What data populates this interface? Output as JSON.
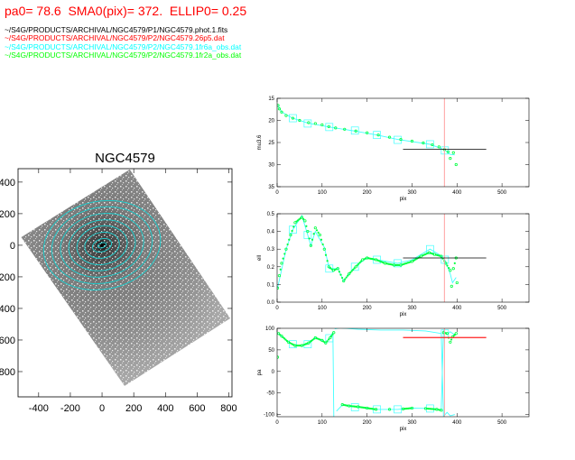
{
  "header": {
    "params": "pa0= 78.6  SMA0(pix)= 372.  ELLIP0= 0.25",
    "files": [
      {
        "text": "~/S4G/PRODUCTS/ARCHIVAL/NGC4579/P1/NGC4579.phot.1.fits",
        "color": "#000000"
      },
      {
        "text": "~/S4G/PRODUCTS/ARCHIVAL/NGC4579/P2/NGC4579.26p5.dat",
        "color": "#ff0000"
      },
      {
        "text": "~/S4G/PRODUCTS/ARCHIVAL/NGC4579/P2/NGC4579.1fr6a_obs.dat",
        "color": "#00ffff"
      },
      {
        "text": "~/S4G/PRODUCTS/ARCHIVAL/NGC4579/P2/NGC4579.1fr2a_obs.dat",
        "color": "#00ff00"
      }
    ]
  },
  "chart_data": [
    {
      "type": "image",
      "title": "NGC4579",
      "xlim": [
        -530,
        820
      ],
      "ylim": [
        -960,
        485
      ],
      "xticks": [
        -400,
        -200,
        0,
        200,
        400,
        600,
        800
      ],
      "yticks": [
        400,
        200,
        0,
        -200,
        -400,
        -600,
        -800
      ],
      "ytick_labels": [
        "400",
        "200",
        "0",
        "-200",
        "-400",
        "-600",
        "-800"
      ],
      "xtick_labels": [
        "-400",
        "-200",
        "0",
        "200",
        "400",
        "600",
        "800"
      ],
      "isophotes": {
        "color": "#20c8c8",
        "pa": 78.6,
        "sma": [
          372,
          320,
          265,
          212,
          160,
          110,
          62,
          28
        ],
        "ellip": [
          0.25,
          0.25,
          0.25,
          0.25,
          0.24,
          0.26,
          0.35,
          0.45
        ]
      }
    },
    {
      "type": "scatter",
      "ylabel": "mu3.6",
      "xlabel": "pix",
      "xlim": [
        0,
        560
      ],
      "ylim": [
        35,
        15
      ],
      "xticks": [
        0,
        100,
        200,
        300,
        400,
        500
      ],
      "xtick_labels": [
        "0",
        "100",
        "200",
        "300",
        "400",
        "500"
      ],
      "yticks": [
        15,
        20,
        25,
        30,
        35
      ],
      "ytick_labels": [
        "15",
        "20",
        "25",
        "30",
        "35"
      ],
      "sma0": 372,
      "ref_value": 26.5,
      "ref_range": [
        280,
        465
      ],
      "green": [
        [
          2,
          16.6
        ],
        [
          5,
          17.4
        ],
        [
          10,
          18.1
        ],
        [
          20,
          18.9
        ],
        [
          35,
          19.5
        ],
        [
          50,
          20
        ],
        [
          70,
          20.5
        ],
        [
          85,
          20.7
        ],
        [
          100,
          21
        ],
        [
          115,
          21.4
        ],
        [
          130,
          21.7
        ],
        [
          150,
          22
        ],
        [
          175,
          22.4
        ],
        [
          200,
          22.8
        ],
        [
          225,
          23.3
        ],
        [
          250,
          23.8
        ],
        [
          275,
          24.3
        ],
        [
          300,
          24.7
        ],
        [
          325,
          25.1
        ],
        [
          345,
          25.5
        ],
        [
          360,
          26
        ],
        [
          372,
          26.6
        ],
        [
          380,
          27.1
        ],
        [
          385,
          28.6
        ],
        [
          392,
          27.3
        ],
        [
          398,
          30
        ]
      ],
      "cyan_line": [
        [
          2,
          16.6
        ],
        [
          10,
          18.1
        ],
        [
          35,
          19.5
        ],
        [
          68,
          20.6
        ],
        [
          116,
          21.5
        ],
        [
          173,
          22.4
        ],
        [
          222,
          23.3
        ],
        [
          268,
          24.3
        ],
        [
          340,
          25.4
        ],
        [
          373,
          26.7
        ],
        [
          385,
          27.7
        ],
        [
          395,
          27.8
        ]
      ],
      "cyan_squares": [
        [
          35,
          19.5
        ],
        [
          68,
          20.7
        ],
        [
          116,
          21.5
        ],
        [
          173,
          22.3
        ],
        [
          222,
          23.3
        ],
        [
          268,
          24.4
        ],
        [
          340,
          25.4
        ],
        [
          373,
          26.8
        ]
      ]
    },
    {
      "type": "scatter",
      "ylabel": "ell",
      "xlabel": "pix",
      "xlim": [
        0,
        560
      ],
      "ylim": [
        0,
        0.5
      ],
      "xticks": [
        0,
        100,
        200,
        300,
        400,
        500
      ],
      "xtick_labels": [
        "0",
        "100",
        "200",
        "300",
        "400",
        "500"
      ],
      "yticks": [
        0,
        0.1,
        0.2,
        0.3,
        0.4,
        0.5
      ],
      "ytick_labels": [
        "0.0",
        "0.1",
        "0.2",
        "0.3",
        "0.4",
        "0.5"
      ],
      "sma0": 372,
      "ref_value": 0.25,
      "ref_range": [
        280,
        465
      ],
      "green": [
        [
          1,
          0.08
        ],
        [
          5,
          0.15
        ],
        [
          10,
          0.22
        ],
        [
          20,
          0.3
        ],
        [
          30,
          0.38
        ],
        [
          40,
          0.45
        ],
        [
          55,
          0.48
        ],
        [
          62,
          0.46
        ],
        [
          68,
          0.4
        ],
        [
          75,
          0.32
        ],
        [
          85,
          0.42
        ],
        [
          95,
          0.38
        ],
        [
          105,
          0.3
        ],
        [
          115,
          0.2
        ],
        [
          125,
          0.18
        ],
        [
          135,
          0.19
        ],
        [
          148,
          0.12
        ],
        [
          160,
          0.16
        ],
        [
          175,
          0.2
        ],
        [
          190,
          0.24
        ],
        [
          200,
          0.25
        ],
        [
          220,
          0.24
        ],
        [
          240,
          0.22
        ],
        [
          260,
          0.21
        ],
        [
          275,
          0.21
        ],
        [
          300,
          0.23
        ],
        [
          320,
          0.26
        ],
        [
          338,
          0.28
        ],
        [
          350,
          0.27
        ],
        [
          365,
          0.26
        ],
        [
          375,
          0.22
        ],
        [
          385,
          0.18
        ],
        [
          388,
          0.09
        ],
        [
          392,
          0.19
        ],
        [
          398,
          0.25
        ],
        [
          400,
          0.11
        ]
      ],
      "cyan_line": [
        [
          1,
          0.08
        ],
        [
          20,
          0.3
        ],
        [
          35,
          0.41
        ],
        [
          55,
          0.49
        ],
        [
          68,
          0.38
        ],
        [
          75,
          0.32
        ],
        [
          85,
          0.4
        ],
        [
          105,
          0.31
        ],
        [
          116,
          0.19
        ],
        [
          135,
          0.19
        ],
        [
          148,
          0.12
        ],
        [
          173,
          0.2
        ],
        [
          200,
          0.25
        ],
        [
          222,
          0.24
        ],
        [
          268,
          0.22
        ],
        [
          300,
          0.24
        ],
        [
          340,
          0.3
        ],
        [
          360,
          0.27
        ],
        [
          373,
          0.24
        ],
        [
          385,
          0.16
        ],
        [
          390,
          0.11
        ],
        [
          398,
          0.14
        ]
      ],
      "cyan_squares": [
        [
          35,
          0.41
        ],
        [
          68,
          0.38
        ],
        [
          116,
          0.19
        ],
        [
          173,
          0.2
        ],
        [
          222,
          0.24
        ],
        [
          268,
          0.22
        ],
        [
          340,
          0.3
        ],
        [
          373,
          0.24
        ]
      ]
    },
    {
      "type": "scatter",
      "ylabel": "pa",
      "xlabel": "pix",
      "xlim": [
        0,
        560
      ],
      "ylim": [
        -105,
        100
      ],
      "xticks": [
        0,
        100,
        200,
        300,
        400,
        500
      ],
      "xtick_labels": [
        "0",
        "100",
        "200",
        "300",
        "400",
        "500"
      ],
      "yticks": [
        -100,
        -50,
        0,
        50,
        100
      ],
      "ytick_labels": [
        "-100",
        "-50",
        "0",
        "50",
        "100"
      ],
      "sma0": 372,
      "ref_value": 78.6,
      "ref_range": [
        280,
        465
      ],
      "green": [
        [
          1,
          33
        ],
        [
          3,
          88
        ],
        [
          10,
          82
        ],
        [
          25,
          68
        ],
        [
          40,
          60
        ],
        [
          55,
          60
        ],
        [
          70,
          66
        ],
        [
          85,
          78
        ],
        [
          100,
          72
        ],
        [
          108,
          66
        ],
        [
          118,
          78
        ],
        [
          126,
          90
        ],
        [
          145,
          -77
        ],
        [
          160,
          -80
        ],
        [
          180,
          -82
        ],
        [
          200,
          -85
        ],
        [
          220,
          -88
        ],
        [
          250,
          -88
        ],
        [
          280,
          -87
        ],
        [
          300,
          -85
        ],
        [
          330,
          -86
        ],
        [
          355,
          -88
        ],
        [
          365,
          -90
        ],
        [
          370,
          90
        ],
        [
          378,
          88
        ],
        [
          385,
          68
        ],
        [
          390,
          80
        ],
        [
          398,
          88
        ]
      ],
      "cyan_lines": [
        [
          [
            3,
            88
          ],
          [
            25,
            68
          ],
          [
            40,
            60
          ],
          [
            55,
            60
          ],
          [
            68,
            63
          ],
          [
            85,
            78
          ],
          [
            100,
            72
          ],
          [
            108,
            66
          ],
          [
            116,
            78
          ],
          [
            124,
            90
          ],
          [
            126,
            -105
          ]
        ],
        [
          [
            128,
            99
          ],
          [
            140,
            101
          ],
          [
            180,
            98
          ],
          [
            230,
            96
          ],
          [
            280,
            96
          ],
          [
            330,
            94
          ],
          [
            365,
            88
          ],
          [
            370,
            -104
          ],
          [
            378,
            -95
          ],
          [
            385,
            -103
          ],
          [
            395,
            -100
          ]
        ],
        [
          [
            132,
            -92
          ],
          [
            145,
            -78
          ],
          [
            173,
            -82
          ],
          [
            222,
            -88
          ],
          [
            268,
            -88
          ],
          [
            300,
            -85
          ],
          [
            340,
            -86
          ],
          [
            365,
            -89
          ],
          [
            370,
            95
          ],
          [
            378,
            86
          ],
          [
            385,
            92
          ],
          [
            395,
            85
          ]
        ]
      ],
      "cyan_squares": [
        [
          35,
          63
        ],
        [
          68,
          63
        ],
        [
          116,
          77
        ],
        [
          173,
          -83
        ],
        [
          222,
          -88
        ],
        [
          268,
          -88
        ],
        [
          340,
          -86
        ],
        [
          373,
          88
        ]
      ]
    }
  ],
  "colors": {
    "ref_line": "#ff2020",
    "sma0_line": "#ffa0a0",
    "green": "#00ff40",
    "cyan": "#40ffff",
    "axis": "#000000"
  }
}
